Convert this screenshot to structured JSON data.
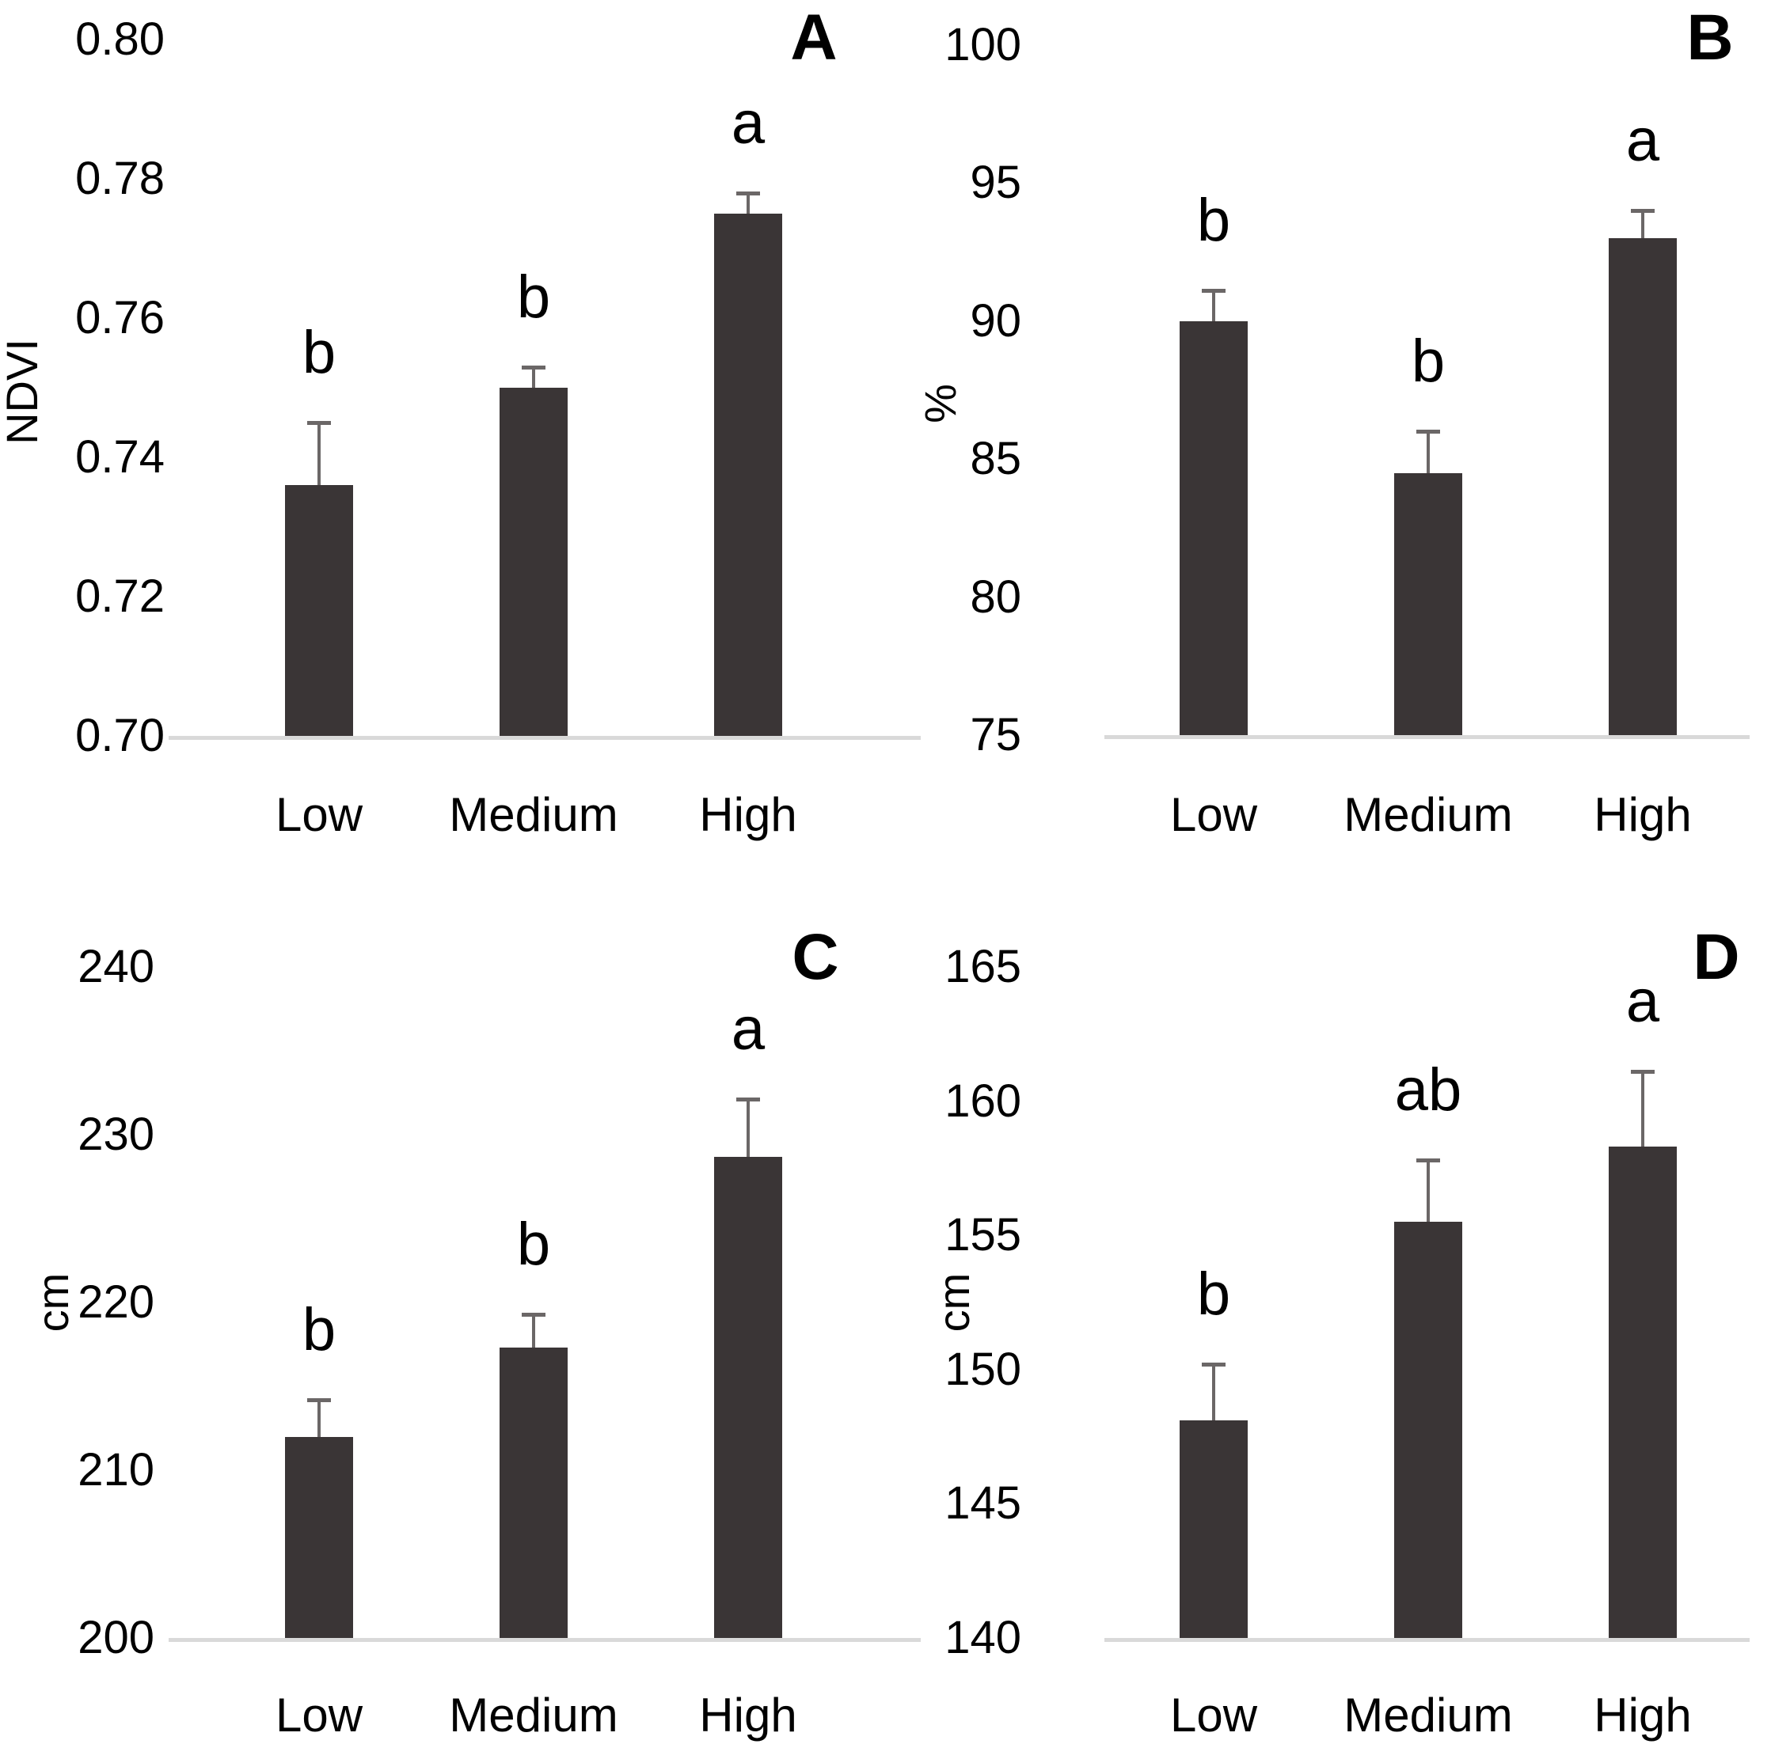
{
  "figure": {
    "background": "#ffffff",
    "bar_color": "#3a3536",
    "error_bar_color": "#6b6767",
    "axis_line_color": "#d9d9d9",
    "text_color": "#000000"
  },
  "chart_data": [
    {
      "panel_letter": "A",
      "type": "bar",
      "title": "",
      "xlabel": "",
      "ylabel": "NDVI",
      "categories": [
        "Low",
        "Medium",
        "High"
      ],
      "values": [
        0.736,
        0.75,
        0.775
      ],
      "errors": [
        0.009,
        0.003,
        0.003
      ],
      "sig_letters": [
        "b",
        "b",
        "a"
      ],
      "ylim": [
        0.7,
        0.8
      ],
      "ytick_values": [
        0.7,
        0.72,
        0.74,
        0.76,
        0.78,
        0.8
      ],
      "ytick_labels": [
        "0.70",
        "0.72",
        "0.74",
        "0.76",
        "0.78",
        "0.80"
      ],
      "grid": false,
      "legend": "none"
    },
    {
      "panel_letter": "B",
      "type": "bar",
      "title": "",
      "xlabel": "",
      "ylabel": "%",
      "categories": [
        "Low",
        "Medium",
        "High"
      ],
      "values": [
        90.0,
        84.5,
        93.0
      ],
      "errors": [
        1.1,
        1.5,
        1.0
      ],
      "sig_letters": [
        "b",
        "b",
        "a"
      ],
      "ylim": [
        75,
        100
      ],
      "ytick_values": [
        75,
        80,
        85,
        90,
        95,
        100
      ],
      "ytick_labels": [
        "75",
        "80",
        "85",
        "90",
        "95",
        "100"
      ],
      "grid": false,
      "legend": "none"
    },
    {
      "panel_letter": "C",
      "type": "bar",
      "title": "",
      "xlabel": "",
      "ylabel": "cm",
      "categories": [
        "Low",
        "Medium",
        "High"
      ],
      "values": [
        212.0,
        217.3,
        228.7
      ],
      "errors": [
        2.2,
        2.0,
        3.4
      ],
      "sig_letters": [
        "b",
        "b",
        "a"
      ],
      "ylim": [
        200,
        240
      ],
      "ytick_values": [
        200,
        210,
        220,
        230,
        240
      ],
      "ytick_labels": [
        "200",
        "210",
        "220",
        "230",
        "240"
      ],
      "grid": false,
      "legend": "none"
    },
    {
      "panel_letter": "D",
      "type": "bar",
      "title": "",
      "xlabel": "",
      "ylabel": "cm",
      "categories": [
        "Low",
        "Medium",
        "High"
      ],
      "values": [
        148.1,
        155.5,
        158.3
      ],
      "errors": [
        2.1,
        2.3,
        2.8
      ],
      "sig_letters": [
        "b",
        "ab",
        "a"
      ],
      "ylim": [
        140,
        165
      ],
      "ytick_values": [
        140,
        145,
        150,
        155,
        160,
        165
      ],
      "ytick_labels": [
        "140",
        "145",
        "150",
        "155",
        "160",
        "165"
      ],
      "grid": false,
      "legend": "none"
    }
  ]
}
